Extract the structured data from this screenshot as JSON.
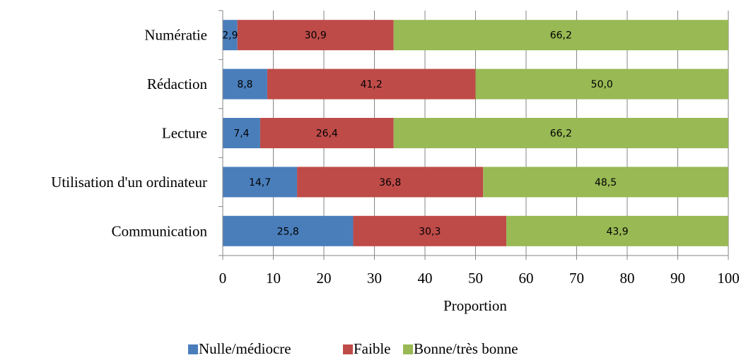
{
  "chart_data": {
    "type": "bar",
    "orientation": "horizontal",
    "stacked": true,
    "categories": [
      "Numératie",
      "Rédaction",
      "Lecture",
      "Utilisation d'un ordinateur",
      "Communication"
    ],
    "series": [
      {
        "name": "Nulle/médiocre",
        "color": "#4a7ebb",
        "values": [
          2.9,
          8.8,
          7.4,
          14.7,
          25.8
        ],
        "labels": [
          "2,9",
          "8,8",
          "7,4",
          "14,7",
          "25,8"
        ]
      },
      {
        "name": "Faible",
        "color": "#be4b48",
        "values": [
          30.9,
          41.2,
          26.4,
          36.8,
          30.3
        ],
        "labels": [
          "30,9",
          "41,2",
          "26,4",
          "36,8",
          "30,3"
        ]
      },
      {
        "name": "Bonne/très bonne",
        "color": "#98b954",
        "values": [
          66.2,
          50.0,
          66.2,
          48.5,
          43.9
        ],
        "labels": [
          "66,2",
          "50,0",
          "66,2",
          "48,5",
          "43,9"
        ]
      }
    ],
    "xlabel": "Proportion",
    "ylabel": "",
    "xlim": [
      0,
      100
    ],
    "x_ticks": [
      0,
      10,
      20,
      30,
      40,
      50,
      60,
      70,
      80,
      90,
      100
    ],
    "grid": "vertical",
    "legend_position": "bottom"
  }
}
